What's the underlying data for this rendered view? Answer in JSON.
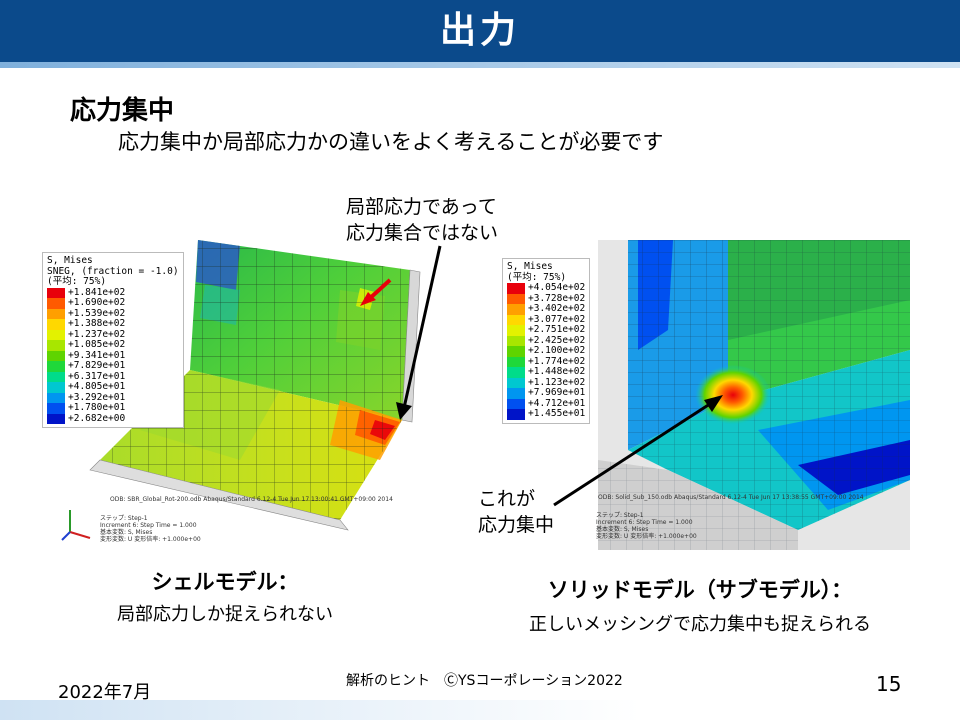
{
  "title": "出力",
  "heading": "応力集中",
  "subheading": "応力集中か局部応力かの違いをよく考えることが必要です",
  "callout_top": [
    "局部応力であって",
    "応力集合ではない"
  ],
  "callout_bottom": [
    "これが",
    "応力集中"
  ],
  "left_caption": {
    "main": "シェルモデル：",
    "sub": "局部応力しか捉えられない"
  },
  "right_caption": {
    "main": "ソリッドモデル（サブモデル）：",
    "sub": "正しいメッシングで応力集中も捉えられる"
  },
  "footer": {
    "date": "2022年7月",
    "center": "解析のヒント　ⒸYSコーポレーション2022",
    "page": "15"
  },
  "shell_legend": {
    "lines": [
      "S, Mises",
      "SNEG, (fraction = -1.0)",
      "(平均: 75%)"
    ],
    "values": [
      "+1.841e+02",
      "+1.690e+02",
      "+1.539e+02",
      "+1.388e+02",
      "+1.237e+02",
      "+1.085e+02",
      "+9.341e+01",
      "+7.829e+01",
      "+6.317e+01",
      "+4.805e+01",
      "+3.292e+01",
      "+1.780e+01",
      "+2.682e+00"
    ],
    "colors": [
      "#e8000b",
      "#ff5a00",
      "#ff9f00",
      "#ffd800",
      "#e3f200",
      "#a8e600",
      "#5fd400",
      "#1fd83a",
      "#00dc8a",
      "#00c8d0",
      "#0096f0",
      "#0050f0",
      "#0014c8"
    ],
    "info": [
      "ODB: SBR_Global_Rot-200.odb    Abaqus/Standard 6.12-4    Tue Jun 17 13:00:41 GMT+09:00 2014",
      "ステップ: Step-1",
      "Increment    6: Step Time =    1.000",
      "基本変数: S, Mises",
      "変形変数: U   変形倍率: +1.000e+00"
    ]
  },
  "solid_legend": {
    "lines": [
      "S, Mises",
      "(平均: 75%)"
    ],
    "values": [
      "+4.054e+02",
      "+3.728e+02",
      "+3.402e+02",
      "+3.077e+02",
      "+2.751e+02",
      "+2.425e+02",
      "+2.100e+02",
      "+1.774e+02",
      "+1.448e+02",
      "+1.123e+02",
      "+7.969e+01",
      "+4.712e+01",
      "+1.455e+01"
    ],
    "colors": [
      "#e8000b",
      "#ff5a00",
      "#ff9f00",
      "#ffd800",
      "#e3f200",
      "#a8e600",
      "#5fd400",
      "#1fd83a",
      "#00dc8a",
      "#00c8d0",
      "#0096f0",
      "#0050f0",
      "#0014c8"
    ],
    "info": [
      "ODB: Solid_Sub_150.odb    Abaqus/Standard 6.12-4    Tue Jun 17 13:38:55 GMT+09:00 2014",
      "ステップ: Step-1",
      "Increment    6: Step Time =    1.000",
      "基本変数: S, Mises",
      "変形変数: U   変形倍率: +1.000e+00"
    ]
  }
}
